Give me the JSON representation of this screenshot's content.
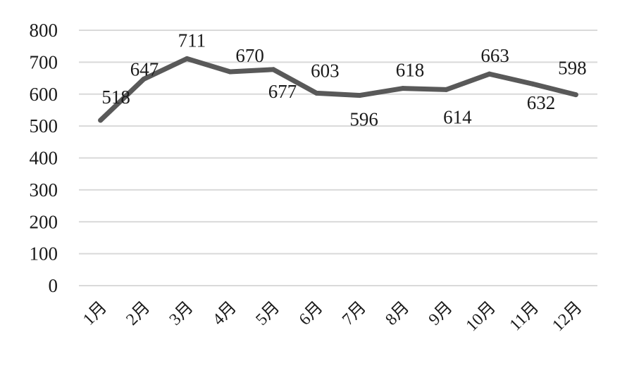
{
  "chart_data": {
    "type": "line",
    "categories": [
      "1月",
      "2月",
      "3月",
      "4月",
      "5月",
      "6月",
      "7月",
      "8月",
      "9月",
      "10月",
      "11月",
      "12月"
    ],
    "values": [
      518,
      647,
      711,
      670,
      677,
      603,
      596,
      618,
      614,
      663,
      632,
      598
    ],
    "yticks": [
      0,
      100,
      200,
      300,
      400,
      500,
      600,
      700,
      800
    ],
    "ylim": [
      0,
      800
    ],
    "grid": true,
    "data_labels": true
  },
  "colors": {
    "line": "#595959",
    "grid": "#d9d9d9",
    "text": "#1a1a1a",
    "background": "#ffffff"
  }
}
